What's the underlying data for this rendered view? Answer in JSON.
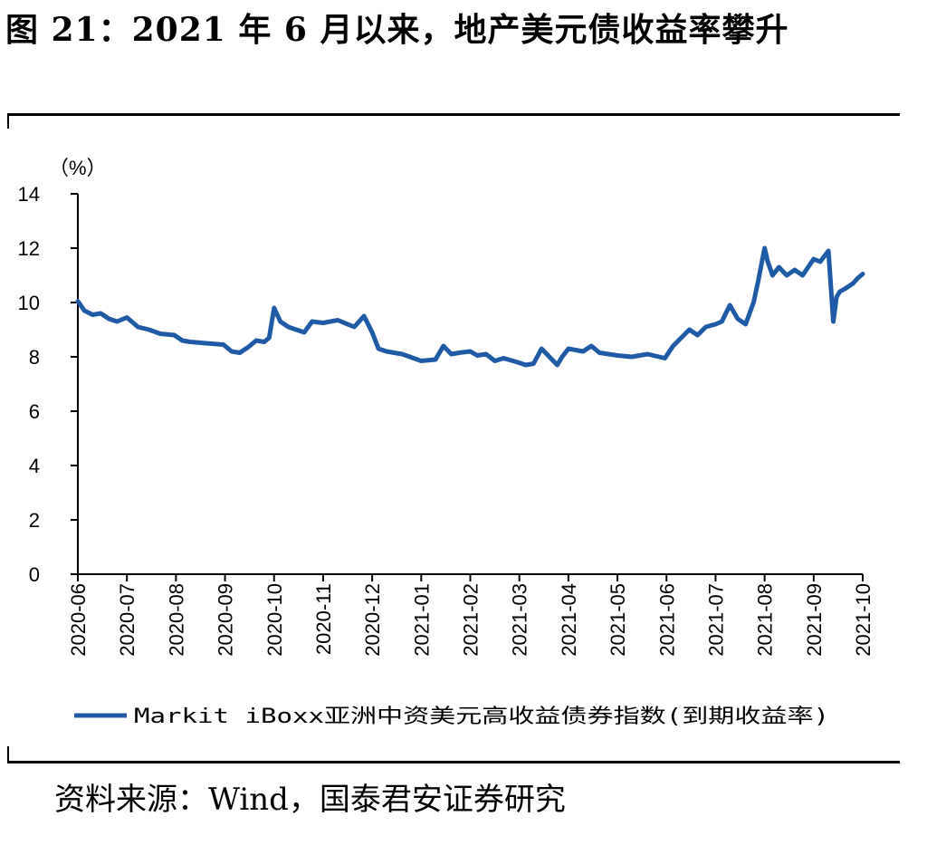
{
  "figure_title": "图 21：2021 年 6 月以来，地产美元债收益率攀升",
  "source_text": "资料来源：Wind，国泰君安证券研究",
  "colors": {
    "series": "#1f5aa6",
    "axis": "#000000"
  },
  "chart_data": {
    "type": "line",
    "y_unit": "（%）",
    "ylim": [
      0,
      14
    ],
    "yticks": [
      0,
      2,
      4,
      6,
      8,
      10,
      12,
      14
    ],
    "xlim": [
      "2020-06",
      "2021-10"
    ],
    "xticks": [
      "2020-06",
      "2020-07",
      "2020-08",
      "2020-09",
      "2020-10",
      "2020-11",
      "2020-12",
      "2021-01",
      "2021-02",
      "2021-03",
      "2021-04",
      "2021-05",
      "2021-06",
      "2021-07",
      "2021-08",
      "2021-09",
      "2021-10"
    ],
    "grid": false,
    "legend": "bottom",
    "series": [
      {
        "name": "Markit iBoxx亚洲中资美元高收益债券指数(到期收益率)",
        "color": "#1f5aa6",
        "x": [
          "2020-06-01",
          "2020-06-05",
          "2020-06-10",
          "2020-06-15",
          "2020-06-20",
          "2020-06-25",
          "2020-07-01",
          "2020-07-08",
          "2020-07-15",
          "2020-07-22",
          "2020-07-31",
          "2020-08-05",
          "2020-08-10",
          "2020-08-20",
          "2020-08-31",
          "2020-09-05",
          "2020-09-10",
          "2020-09-15",
          "2020-09-20",
          "2020-09-25",
          "2020-09-28",
          "2020-10-01",
          "2020-10-05",
          "2020-10-10",
          "2020-10-20",
          "2020-10-25",
          "2020-11-01",
          "2020-11-10",
          "2020-11-20",
          "2020-11-26",
          "2020-12-01",
          "2020-12-05",
          "2020-12-10",
          "2020-12-20",
          "2021-01-01",
          "2021-01-10",
          "2021-01-15",
          "2021-01-20",
          "2021-01-25",
          "2021-02-01",
          "2021-02-05",
          "2021-02-10",
          "2021-02-15",
          "2021-02-20",
          "2021-02-28",
          "2021-03-05",
          "2021-03-10",
          "2021-03-15",
          "2021-03-20",
          "2021-03-25",
          "2021-03-28",
          "2021-04-01",
          "2021-04-10",
          "2021-04-15",
          "2021-04-20",
          "2021-05-01",
          "2021-05-10",
          "2021-05-20",
          "2021-05-31",
          "2021-06-05",
          "2021-06-10",
          "2021-06-15",
          "2021-06-20",
          "2021-06-25",
          "2021-07-01",
          "2021-07-05",
          "2021-07-10",
          "2021-07-15",
          "2021-07-20",
          "2021-07-25",
          "2021-07-28",
          "2021-08-01",
          "2021-08-03",
          "2021-08-06",
          "2021-08-10",
          "2021-08-15",
          "2021-08-20",
          "2021-08-25",
          "2021-09-01",
          "2021-09-05",
          "2021-09-10",
          "2021-09-13",
          "2021-09-15",
          "2021-09-17",
          "2021-09-20",
          "2021-09-25",
          "2021-09-28",
          "2021-10-01"
        ],
        "values": [
          10.05,
          9.7,
          9.55,
          9.6,
          9.4,
          9.3,
          9.45,
          9.1,
          9.0,
          8.85,
          8.8,
          8.6,
          8.55,
          8.5,
          8.45,
          8.2,
          8.15,
          8.35,
          8.6,
          8.55,
          8.7,
          9.8,
          9.3,
          9.1,
          8.9,
          9.3,
          9.25,
          9.35,
          9.1,
          9.5,
          8.9,
          8.3,
          8.2,
          8.1,
          7.85,
          7.9,
          8.4,
          8.1,
          8.15,
          8.2,
          8.05,
          8.1,
          7.85,
          7.95,
          7.8,
          7.7,
          7.75,
          8.3,
          8.0,
          7.7,
          8.0,
          8.3,
          8.2,
          8.4,
          8.15,
          8.05,
          8.0,
          8.1,
          7.95,
          8.4,
          8.7,
          9.0,
          8.8,
          9.1,
          9.2,
          9.3,
          9.9,
          9.4,
          9.2,
          10.0,
          10.8,
          12.0,
          11.5,
          11.0,
          11.3,
          11.0,
          11.2,
          11.0,
          11.6,
          11.5,
          11.9,
          9.3,
          10.2,
          10.4,
          10.5,
          10.7,
          10.9,
          11.05
        ]
      }
    ]
  }
}
